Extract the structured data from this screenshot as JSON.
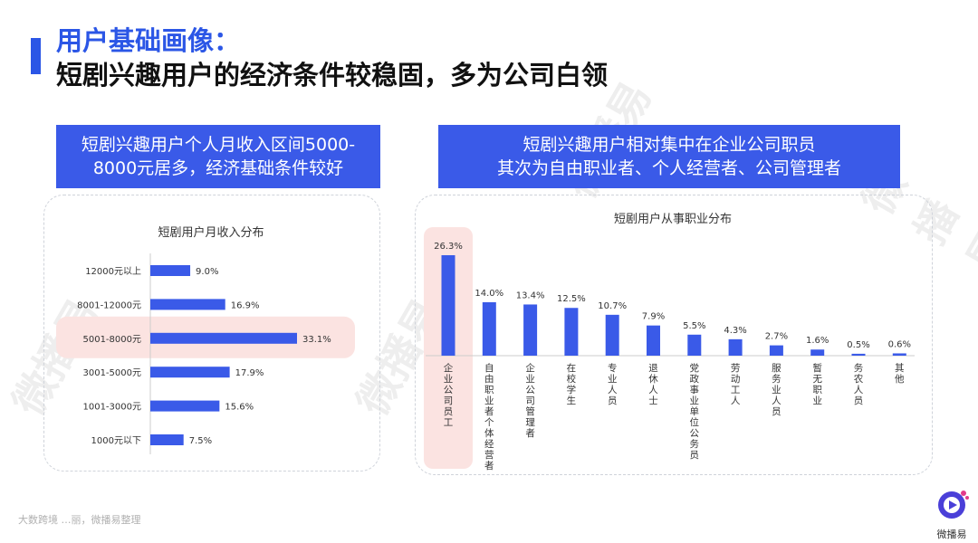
{
  "header": {
    "title": "用户基础画像：",
    "subtitle": "短剧兴趣用户的经济条件较稳固，多为公司白领"
  },
  "left_box": {
    "line1": "短剧兴趣用户个人月收入区间5000-",
    "line2": "8000元居多，经济基础条件较好"
  },
  "right_box": {
    "line1": "短剧兴趣用户相对集中在企业公司职员",
    "line2": "其次为自由职业者、个人经营者、公司管理者"
  },
  "watermark": "微播易",
  "footer": {
    "source": "大数跨境 …丽，微播易整理"
  },
  "logo": {
    "name": "微播易"
  },
  "colors": {
    "bar": "#3a5ae8",
    "highlight": "#fbe3e1",
    "accent": "#2b56e6"
  },
  "chart_data": [
    {
      "type": "bar",
      "orientation": "horizontal",
      "title": "短剧用户月收入分布",
      "categories": [
        "12000元以上",
        "8001-12000元",
        "5001-8000元",
        "3001-5000元",
        "1001-3000元",
        "1000元以下"
      ],
      "values": [
        9.0,
        16.9,
        33.1,
        17.9,
        15.6,
        7.5
      ],
      "value_labels": [
        "9.0%",
        "16.9%",
        "33.1%",
        "17.9%",
        "15.6%",
        "7.5%"
      ],
      "highlight": "5001-8000元",
      "unit": "%"
    },
    {
      "type": "bar",
      "orientation": "vertical",
      "title": "短剧用户从事职业分布",
      "categories": [
        "企业公司员工",
        "自由职业者个体经营者",
        "企业公司管理者",
        "在校学生",
        "专业人员",
        "退休人士",
        "党政事业单位公务员",
        "劳动工人",
        "服务业人员",
        "暂无职业",
        "务农人员",
        "其他"
      ],
      "values": [
        26.3,
        14.0,
        13.4,
        12.5,
        10.7,
        7.9,
        5.5,
        4.3,
        2.7,
        1.6,
        0.5,
        0.6
      ],
      "value_labels": [
        "26.3%",
        "14.0%",
        "13.4%",
        "12.5%",
        "10.7%",
        "7.9%",
        "5.5%",
        "4.3%",
        "2.7%",
        "1.6%",
        "0.5%",
        "0.6%"
      ],
      "highlight": "企业公司员工",
      "unit": "%"
    }
  ]
}
